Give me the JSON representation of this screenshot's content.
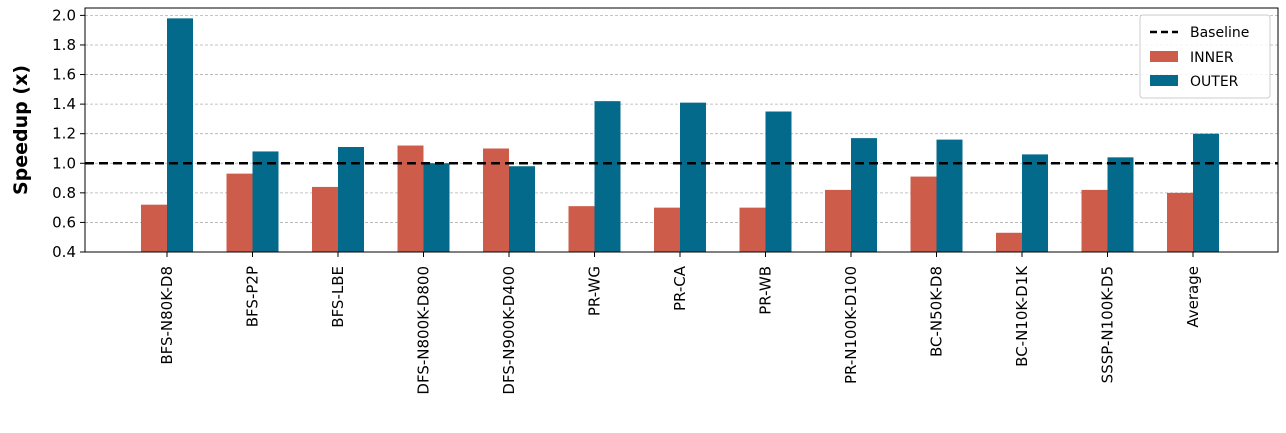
{
  "chart_data": {
    "type": "bar",
    "title": "",
    "xlabel": "",
    "ylabel": "Speedup (x)",
    "ylim": [
      0.4,
      2.05
    ],
    "yticks": [
      "0.4",
      "0.6",
      "0.8",
      "1.0",
      "1.2",
      "1.4",
      "1.6",
      "1.8",
      "2.0"
    ],
    "grid": "horizontal-dashed",
    "legend_position": "top-right",
    "categories": [
      "BFS-N80K-D8",
      "BFS-P2P",
      "BFS-LBE",
      "DFS-N800K-D800",
      "DFS-N900K-D400",
      "PR-WG",
      "PR-CA",
      "PR-WB",
      "PR-N100K-D100",
      "BC-N50K-D8",
      "BC-N10K-D1K",
      "SSSP-N100K-D5",
      "Average"
    ],
    "series": [
      {
        "name": "INNER",
        "color": "#cd5c4a",
        "values": [
          0.72,
          0.93,
          0.84,
          1.12,
          1.1,
          0.71,
          0.7,
          0.7,
          0.82,
          0.91,
          0.53,
          0.82,
          0.8
        ]
      },
      {
        "name": "OUTER",
        "color": "#046a8c",
        "values": [
          1.98,
          1.08,
          1.11,
          1.0,
          0.98,
          1.42,
          1.41,
          1.35,
          1.17,
          1.16,
          1.06,
          1.04,
          1.2
        ]
      }
    ],
    "baseline": {
      "name": "Baseline",
      "value": 1.0,
      "style": "dashed",
      "color": "#000000"
    }
  }
}
